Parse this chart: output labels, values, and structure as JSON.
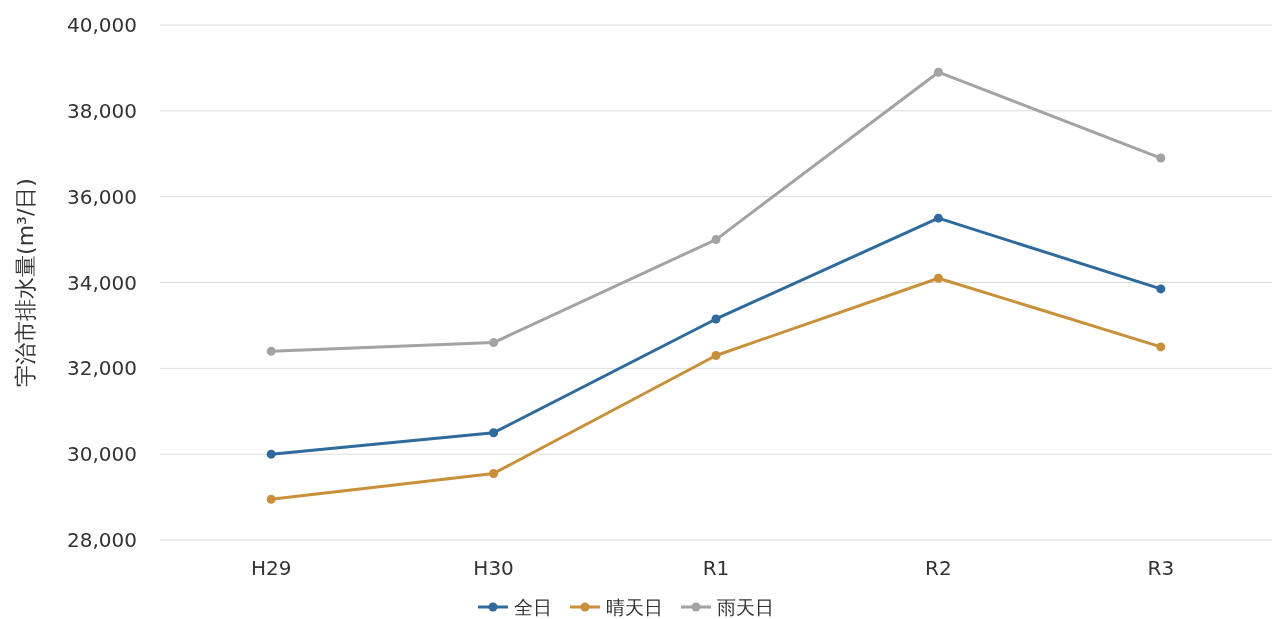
{
  "chart_data": {
    "type": "line",
    "ylabel": "宇治市排水量(m³/日)",
    "categories": [
      "H29",
      "H30",
      "R1",
      "R2",
      "R3"
    ],
    "series": [
      {
        "name": "全日",
        "color": "#2e6a9c",
        "values": [
          30000,
          30500,
          33150,
          35500,
          33850
        ]
      },
      {
        "name": "晴天日",
        "color": "#c8903a",
        "values": [
          28950,
          29550,
          32300,
          34100,
          32500
        ]
      },
      {
        "name": "雨天日",
        "color": "#a3a3a3",
        "values": [
          32400,
          32600,
          35000,
          38900,
          36900
        ]
      }
    ],
    "ylim": [
      28000,
      40000
    ],
    "yticks": [
      {
        "value": 28000,
        "label": "28,000"
      },
      {
        "value": 30000,
        "label": "30,000"
      },
      {
        "value": 32000,
        "label": "32,000"
      },
      {
        "value": 34000,
        "label": "34,000"
      },
      {
        "value": 36000,
        "label": "36,000"
      },
      {
        "value": 38000,
        "label": "38,000"
      },
      {
        "value": 40000,
        "label": "40,000"
      }
    ],
    "grid": "y",
    "legend": "bottom",
    "marker": "circle",
    "line_style": "solid"
  }
}
